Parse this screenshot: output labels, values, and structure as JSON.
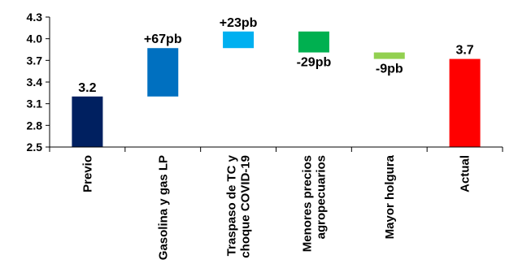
{
  "chart_data": {
    "type": "bar",
    "subtype": "waterfall",
    "title": "",
    "xlabel": "",
    "ylabel": "",
    "ylim": [
      2.5,
      4.3
    ],
    "yticks": [
      "2.5",
      "2.8",
      "3.1",
      "3.4",
      "3.7",
      "4.0",
      "4.3"
    ],
    "grid": false,
    "legend": "none",
    "bars": [
      {
        "category": [
          "Previo"
        ],
        "base": 2.5,
        "top": 3.2,
        "label": "3.2",
        "color": "#002060",
        "label_pos": "above"
      },
      {
        "category": [
          "Gasolina y gas LP"
        ],
        "base": 3.2,
        "top": 3.87,
        "label": "+67pb",
        "color": "#0070C0",
        "label_pos": "above"
      },
      {
        "category": [
          "Traspaso de TC y",
          "choque COVID-19"
        ],
        "base": 3.87,
        "top": 4.1,
        "label": "+23pb",
        "color": "#00B0F0",
        "label_pos": "above"
      },
      {
        "category": [
          "Menores precios",
          "agropecuarios"
        ],
        "base": 3.81,
        "top": 4.1,
        "label": "-29pb",
        "color": "#00B050",
        "label_pos": "below"
      },
      {
        "category": [
          "Mayor holgura"
        ],
        "base": 3.72,
        "top": 3.81,
        "label": "-9pb",
        "color": "#92D050",
        "label_pos": "below"
      },
      {
        "category": [
          "Actual"
        ],
        "base": 2.5,
        "top": 3.72,
        "label": "3.7",
        "color": "#FF0000",
        "label_pos": "above"
      }
    ]
  }
}
